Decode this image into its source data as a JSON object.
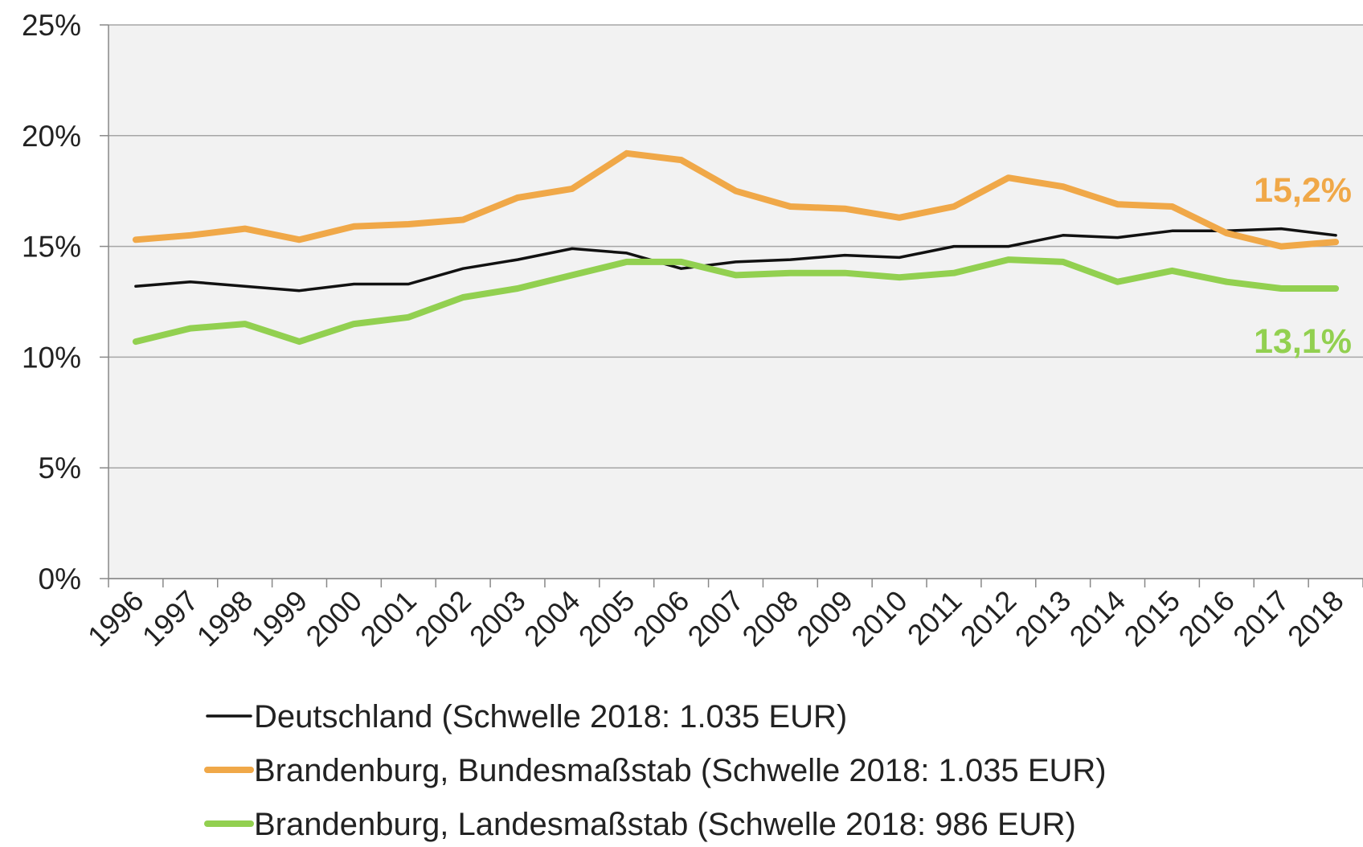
{
  "chart_data": {
    "type": "line",
    "categories": [
      "1996",
      "1997",
      "1998",
      "1999",
      "2000",
      "2001",
      "2002",
      "2003",
      "2004",
      "2005",
      "2006",
      "2007",
      "2008",
      "2009",
      "2010",
      "2011",
      "2012",
      "2013",
      "2014",
      "2015",
      "2016",
      "2017",
      "2018"
    ],
    "series": [
      {
        "name": "Deutschland (Schwelle 2018: 1.035 EUR)",
        "color": "#111111",
        "values": [
          13.2,
          13.4,
          13.2,
          13.0,
          13.3,
          13.3,
          14.0,
          14.4,
          14.9,
          14.7,
          14.0,
          14.3,
          14.4,
          14.6,
          14.5,
          15.0,
          15.0,
          15.5,
          15.4,
          15.7,
          15.7,
          15.8,
          15.5
        ]
      },
      {
        "name": "Brandenburg, Bundesmaßstab (Schwelle 2018: 1.035 EUR)",
        "color": "#f0a848",
        "values": [
          15.3,
          15.5,
          15.8,
          15.3,
          15.9,
          16.0,
          16.2,
          17.2,
          17.6,
          19.2,
          18.9,
          17.5,
          16.8,
          16.7,
          16.3,
          16.8,
          18.1,
          17.7,
          16.9,
          16.8,
          15.6,
          15.0,
          15.2
        ],
        "value_labels": [
          null,
          null,
          null,
          null,
          null,
          null,
          null,
          null,
          null,
          null,
          null,
          null,
          null,
          null,
          null,
          null,
          null,
          null,
          null,
          null,
          null,
          null,
          "15,2%"
        ]
      },
      {
        "name": "Brandenburg, Landesmaßstab (Schwelle 2018: 986 EUR)",
        "color": "#92d050",
        "values": [
          10.7,
          11.3,
          11.5,
          10.7,
          11.5,
          11.8,
          12.7,
          13.1,
          13.7,
          14.3,
          14.3,
          13.7,
          13.8,
          13.8,
          13.6,
          13.8,
          14.4,
          14.3,
          13.4,
          13.9,
          13.4,
          13.1,
          13.1
        ],
        "value_labels": [
          null,
          null,
          null,
          null,
          null,
          null,
          null,
          null,
          null,
          null,
          null,
          null,
          null,
          null,
          null,
          null,
          null,
          null,
          null,
          null,
          null,
          null,
          "13,1%"
        ]
      }
    ],
    "ylim": [
      0,
      25
    ],
    "yticks": [
      {
        "value": 0,
        "label": "0%"
      },
      {
        "value": 5,
        "label": "5%"
      },
      {
        "value": 10,
        "label": "10%"
      },
      {
        "value": 15,
        "label": "15%"
      },
      {
        "value": 20,
        "label": "20%"
      },
      {
        "value": 25,
        "label": "25%"
      }
    ],
    "grid": true,
    "legend": "bottom"
  }
}
